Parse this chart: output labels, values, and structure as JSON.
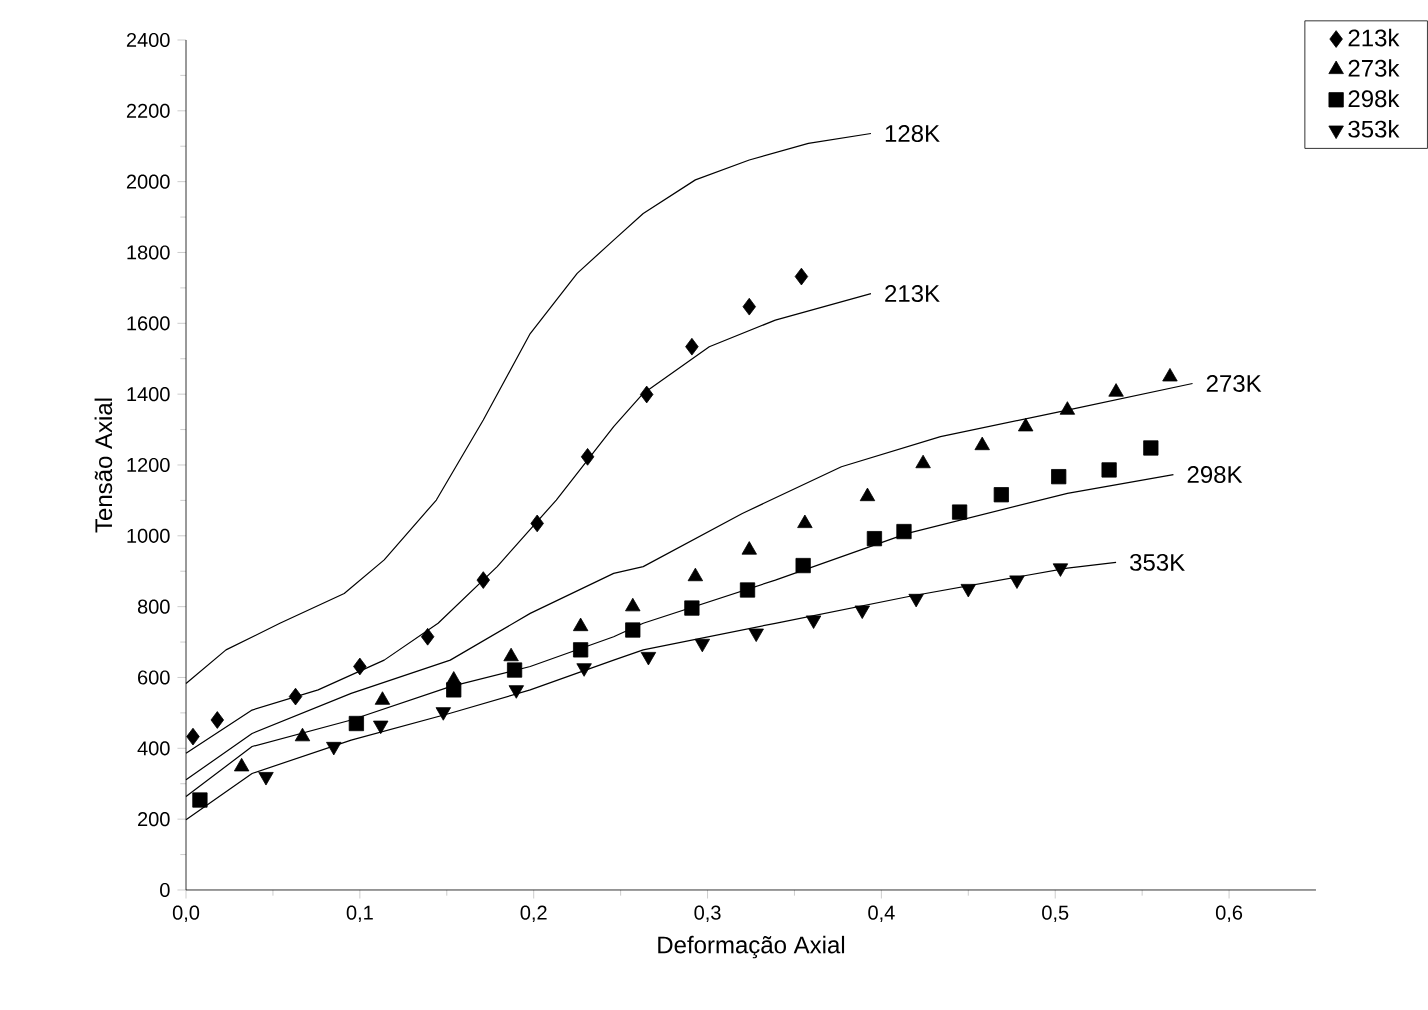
{
  "chart_data": {
    "type": "scatter",
    "xlabel": "Deformação Axial",
    "ylabel": "Tensão Axial",
    "xlim": [
      0,
      0.65
    ],
    "ylim": [
      0,
      2400
    ],
    "xticks": [
      {
        "value": 0,
        "label": "0,0"
      },
      {
        "value": 0.1,
        "label": "0,1"
      },
      {
        "value": 0.2,
        "label": "0,2"
      },
      {
        "value": 0.3,
        "label": "0,3"
      },
      {
        "value": 0.4,
        "label": "0,4"
      },
      {
        "value": 0.5,
        "label": "0,5"
      },
      {
        "value": 0.6,
        "label": "0,6"
      }
    ],
    "yticks": [
      0,
      200,
      400,
      600,
      800,
      1000,
      1200,
      1400,
      1600,
      1800,
      2000,
      2200,
      2400
    ],
    "legend": "top right",
    "grid": false,
    "series": [
      {
        "name": "213k",
        "color": "#000000",
        "marker": "diamond",
        "x": [
          0.004,
          0.018,
          0.063,
          0.1,
          0.139,
          0.171,
          0.202,
          0.231,
          0.265,
          0.291,
          0.324,
          0.354
        ],
        "values": [
          433,
          480,
          546,
          631,
          715,
          875,
          1035,
          1223,
          1399,
          1534,
          1647,
          1732
        ]
      },
      {
        "name": "273k",
        "color": "#000000",
        "marker": "triangle",
        "x": [
          0.032,
          0.067,
          0.113,
          0.154,
          0.187,
          0.227,
          0.257,
          0.293,
          0.324,
          0.356,
          0.392,
          0.424,
          0.458,
          0.483,
          0.507,
          0.535,
          0.566
        ],
        "values": [
          348,
          433,
          536,
          593,
          659,
          744,
          800,
          885,
          960,
          1035,
          1111,
          1204,
          1255,
          1308,
          1355,
          1406,
          1449
        ]
      },
      {
        "name": "298k",
        "color": "#000000",
        "marker": "square",
        "x": [
          0.008,
          0.098,
          0.154,
          0.189,
          0.227,
          0.257,
          0.291,
          0.323,
          0.355,
          0.396,
          0.413,
          0.445,
          0.469,
          0.502,
          0.531,
          0.555
        ],
        "values": [
          254,
          470,
          565,
          621,
          678,
          734,
          796,
          847,
          916,
          992,
          1012,
          1067,
          1116,
          1167,
          1186,
          1248
        ]
      },
      {
        "name": "353k",
        "color": "#000000",
        "marker": "triangle-down",
        "x": [
          0.046,
          0.085,
          0.112,
          0.148,
          0.19,
          0.229,
          0.266,
          0.297,
          0.328,
          0.361,
          0.389,
          0.42,
          0.45,
          0.478,
          0.503
        ],
        "values": [
          320,
          405,
          465,
          503,
          565,
          627,
          659,
          696,
          725,
          762,
          790,
          823,
          851,
          875,
          909
        ]
      },
      {
        "type": "line",
        "color": "#000000",
        "marker": "none",
        "x": [
          0,
          0.023,
          0.054,
          0.091,
          0.114,
          0.144,
          0.171,
          0.198,
          0.225,
          0.246,
          0.263,
          0.293,
          0.324,
          0.358,
          0.394
        ],
        "values": [
          583,
          678,
          753,
          837,
          932,
          1101,
          1327,
          1571,
          1741,
          1835,
          1910,
          2005,
          2061,
          2108,
          2136
        ]
      },
      {
        "type": "line",
        "color": "#000000",
        "marker": "none",
        "x": [
          0,
          0.038,
          0.076,
          0.114,
          0.145,
          0.179,
          0.213,
          0.246,
          0.263,
          0.301,
          0.339,
          0.394
        ],
        "values": [
          386,
          508,
          565,
          649,
          753,
          913,
          1101,
          1308,
          1402,
          1534,
          1609,
          1684
        ]
      },
      {
        "type": "line",
        "color": "#000000",
        "marker": "none",
        "x": [
          0,
          0.038,
          0.095,
          0.152,
          0.198,
          0.246,
          0.263,
          0.32,
          0.377,
          0.434,
          0.507,
          0.579
        ],
        "values": [
          311,
          442,
          555,
          649,
          781,
          894,
          913,
          1063,
          1195,
          1280,
          1355,
          1430
        ]
      },
      {
        "type": "line",
        "color": "#000000",
        "marker": "none",
        "x": [
          0,
          0.038,
          0.095,
          0.152,
          0.198,
          0.246,
          0.263,
          0.339,
          0.415,
          0.507,
          0.568
        ],
        "values": [
          264,
          405,
          480,
          574,
          631,
          715,
          753,
          875,
          1007,
          1120,
          1173
        ]
      },
      {
        "type": "line",
        "color": "#000000",
        "marker": "none",
        "x": [
          0,
          0.038,
          0.095,
          0.152,
          0.198,
          0.246,
          0.263,
          0.339,
          0.415,
          0.507,
          0.535
        ],
        "values": [
          198,
          329,
          423,
          499,
          565,
          649,
          678,
          753,
          828,
          909,
          925
        ]
      }
    ],
    "annotations": [
      {
        "text": "128K",
        "x": 0.394,
        "y": 2136
      },
      {
        "text": "213K",
        "x": 0.394,
        "y": 1684
      },
      {
        "text": "273K",
        "x": 0.579,
        "y": 1430
      },
      {
        "text": "298K",
        "x": 0.568,
        "y": 1173
      },
      {
        "text": "353K",
        "x": 0.535,
        "y": 925
      }
    ]
  }
}
